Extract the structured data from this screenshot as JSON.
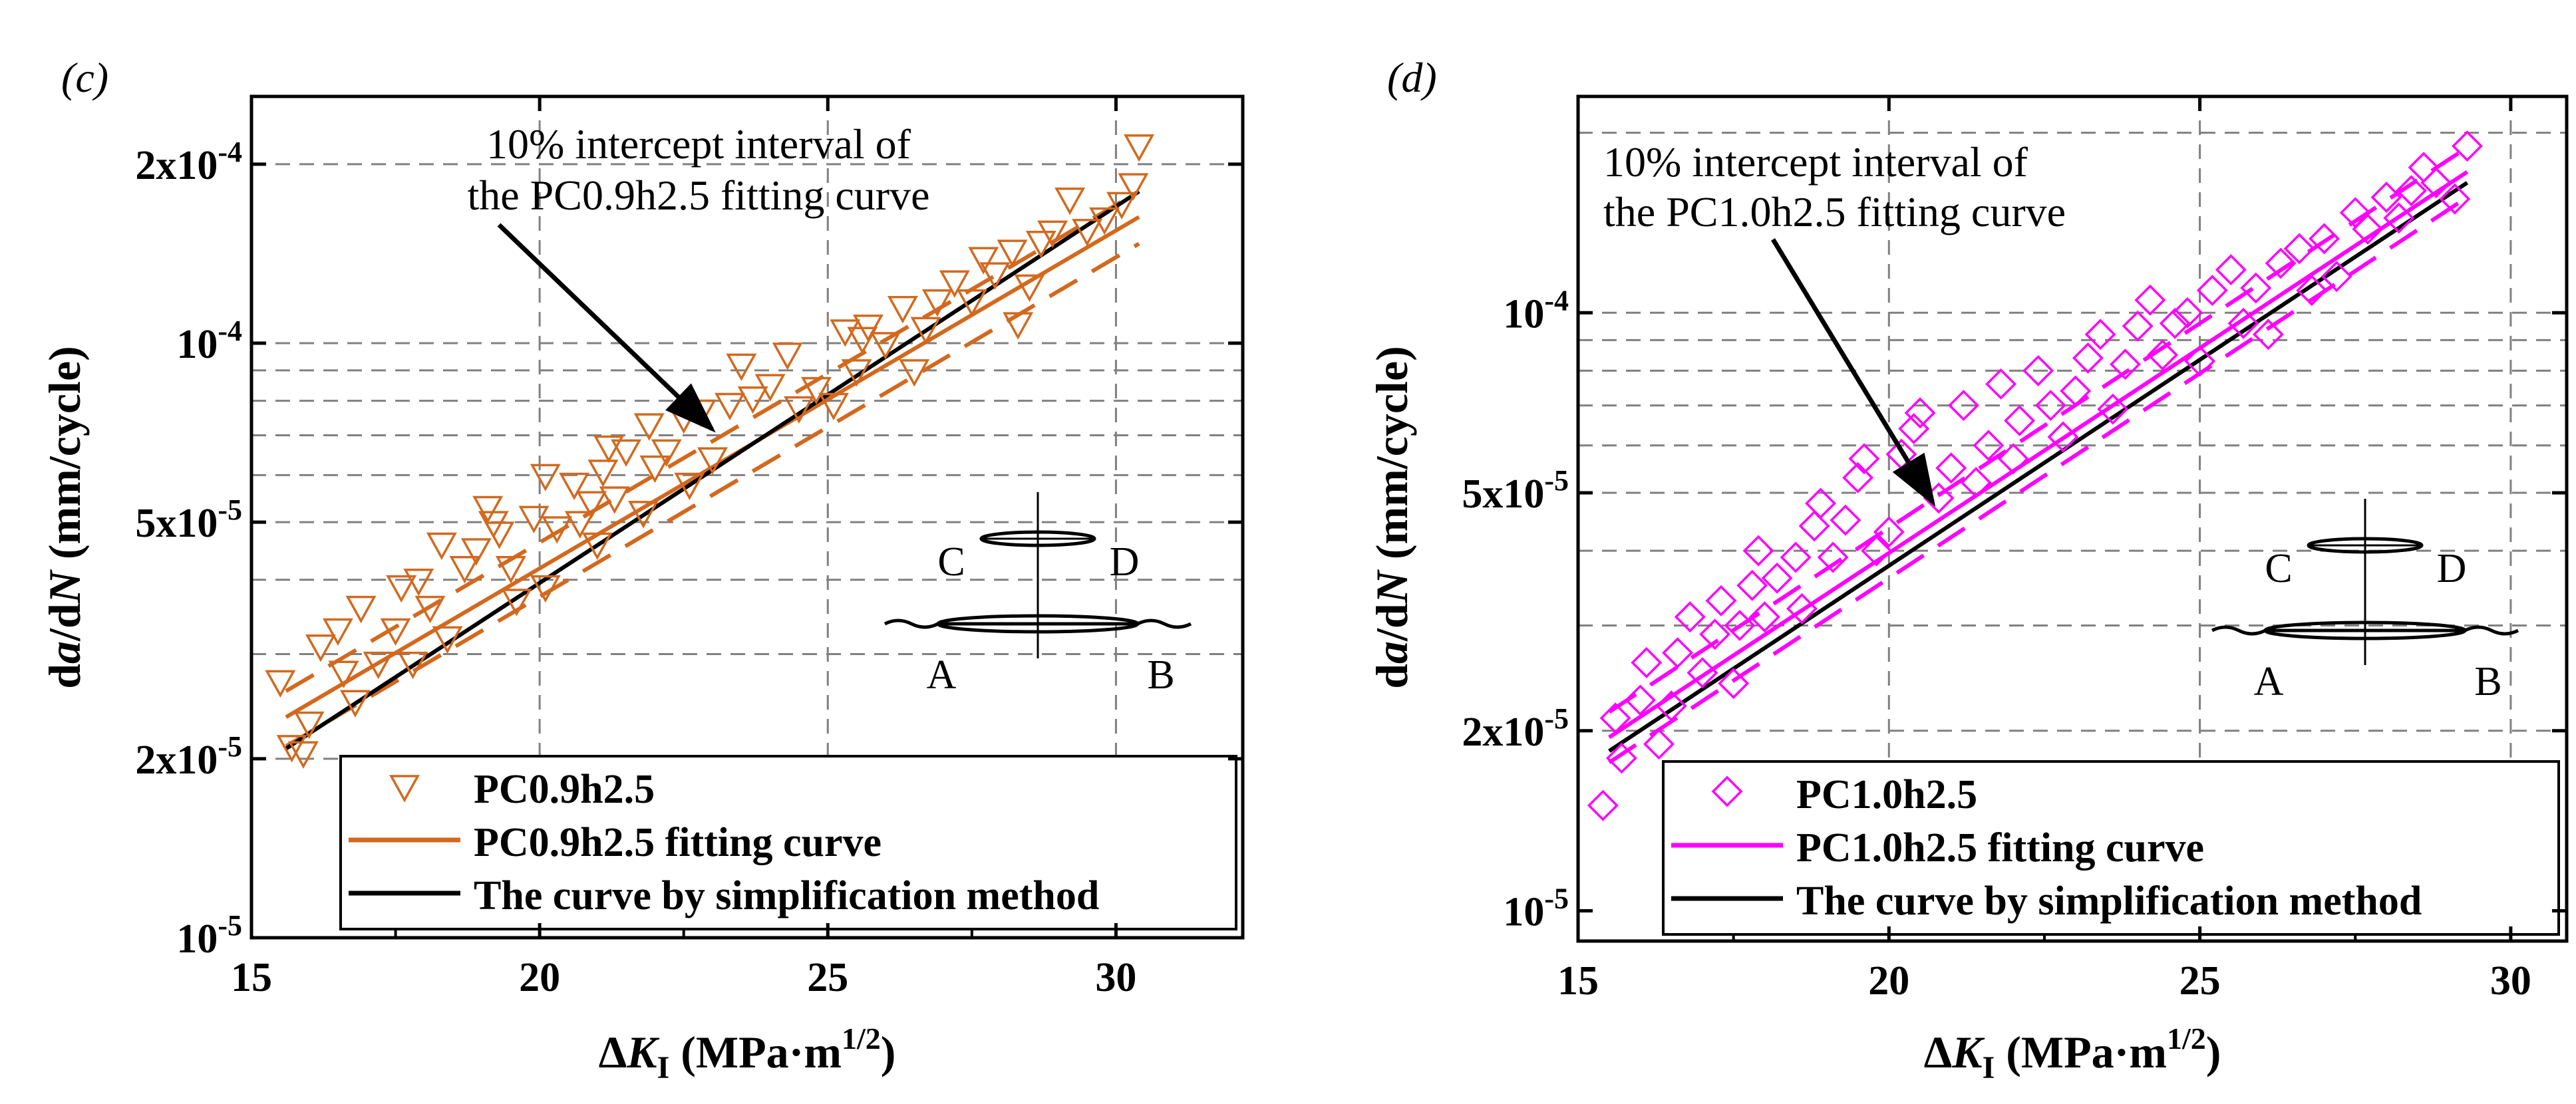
{
  "chart_data": [
    {
      "panel": "c",
      "panel_label": "(c)",
      "type": "scatter",
      "title": "",
      "xlabel": "ΔK_I (MPa·m^1/2)",
      "xlabel_parts": {
        "delta": "Δ",
        "k": "K",
        "sub": "I",
        "unit": " (MPa·m",
        "sup": "1/2",
        "close": ")"
      },
      "ylabel": "da/dN (mm/cycle)",
      "ylabel_parts": {
        "d1": "d",
        "a": "a",
        "slash": "/d",
        "n": "N",
        "unit": " (mm/cycle)"
      },
      "xscale": "linear",
      "yscale": "log",
      "xlim": [
        15,
        32.2
      ],
      "ylim": [
        1e-05,
        0.00026
      ],
      "xticks": [
        15,
        20,
        25,
        30
      ],
      "xtick_labels": [
        "15",
        "20",
        "25",
        "30"
      ],
      "yticks": [
        {
          "value": 1e-05,
          "base": "10",
          "exp": "-5"
        },
        {
          "value": 2e-05,
          "base": "2x10",
          "exp": "-5"
        },
        {
          "value": 5e-05,
          "base": "5x10",
          "exp": "-5"
        },
        {
          "value": 0.0001,
          "base": "10",
          "exp": "-4"
        },
        {
          "value": 0.0002,
          "base": "2x10",
          "exp": "-4"
        }
      ],
      "grid_x": [
        20,
        25,
        30
      ],
      "grid_y": [
        2e-05,
        3e-05,
        4e-05,
        5e-05,
        6e-05,
        7e-05,
        8e-05,
        9e-05,
        0.0001,
        0.0002
      ],
      "color": "#d2691e",
      "marker": "triangle-down",
      "points": [
        [
          15.5,
          2.7e-05
        ],
        [
          15.7,
          2.1e-05
        ],
        [
          15.9,
          2.05e-05
        ],
        [
          16.0,
          2.3e-05
        ],
        [
          16.2,
          3.1e-05
        ],
        [
          16.5,
          3.3e-05
        ],
        [
          16.6,
          2.8e-05
        ],
        [
          16.8,
          2.5e-05
        ],
        [
          16.9,
          3.6e-05
        ],
        [
          17.2,
          2.9e-05
        ],
        [
          17.5,
          3.3e-05
        ],
        [
          17.6,
          3.9e-05
        ],
        [
          17.8,
          2.9e-05
        ],
        [
          17.9,
          4e-05
        ],
        [
          18.1,
          3.6e-05
        ],
        [
          18.3,
          4.6e-05
        ],
        [
          18.4,
          3.2e-05
        ],
        [
          18.7,
          4.2e-05
        ],
        [
          18.9,
          4.5e-05
        ],
        [
          19.1,
          5.3e-05
        ],
        [
          19.2,
          5e-05
        ],
        [
          19.3,
          4.8e-05
        ],
        [
          19.5,
          4.2e-05
        ],
        [
          19.6,
          3.7e-05
        ],
        [
          19.9,
          5.1e-05
        ],
        [
          20.1,
          3.9e-05
        ],
        [
          20.1,
          6e-05
        ],
        [
          20.3,
          4.9e-05
        ],
        [
          20.6,
          5.8e-05
        ],
        [
          20.7,
          5e-05
        ],
        [
          20.9,
          5.4e-05
        ],
        [
          21.0,
          4.6e-05
        ],
        [
          21.1,
          6.1e-05
        ],
        [
          21.2,
          6.7e-05
        ],
        [
          21.3,
          5.5e-05
        ],
        [
          21.5,
          6.6e-05
        ],
        [
          21.8,
          5.2e-05
        ],
        [
          21.9,
          7.3e-05
        ],
        [
          22.0,
          6.2e-05
        ],
        [
          22.2,
          6.6e-05
        ],
        [
          22.5,
          7.5e-05
        ],
        [
          22.6,
          5.8e-05
        ],
        [
          22.8,
          7.7e-05
        ],
        [
          23.0,
          6.4e-05
        ],
        [
          23.3,
          7.9e-05
        ],
        [
          23.5,
          9.2e-05
        ],
        [
          23.7,
          8.1e-05
        ],
        [
          24.0,
          8.5e-05
        ],
        [
          24.3,
          9.6e-05
        ],
        [
          24.5,
          7.8e-05
        ],
        [
          24.8,
          8.4e-05
        ],
        [
          25.1,
          7.9e-05
        ],
        [
          25.3,
          0.000105
        ],
        [
          25.5,
          9e-05
        ],
        [
          25.6,
          0.000102
        ],
        [
          25.7,
          0.000107
        ],
        [
          26.0,
          0.0001
        ],
        [
          26.3,
          0.000115
        ],
        [
          26.5,
          9e-05
        ],
        [
          26.7,
          0.000106
        ],
        [
          26.9,
          0.000118
        ],
        [
          27.2,
          0.000127
        ],
        [
          27.5,
          0.000118
        ],
        [
          27.7,
          0.000139
        ],
        [
          27.9,
          0.000131
        ],
        [
          28.2,
          0.000143
        ],
        [
          28.3,
          0.000108
        ],
        [
          28.5,
          0.000125
        ],
        [
          28.7,
          0.000148
        ],
        [
          28.9,
          0.000154
        ],
        [
          29.2,
          0.000175
        ],
        [
          29.5,
          0.000155
        ],
        [
          29.8,
          0.000162
        ],
        [
          30.1,
          0.000172
        ],
        [
          30.3,
          0.000185
        ],
        [
          30.4,
          0.000215
        ]
      ],
      "fit_curve": {
        "x": [
          15.6,
          30.4
        ],
        "y": [
          2.35e-05,
          0.000163
        ]
      },
      "fit_upper": {
        "x": [
          15.6,
          30.4
        ],
        "y": [
          2.6e-05,
          0.00018
        ]
      },
      "fit_lower": {
        "x": [
          15.6,
          30.4
        ],
        "y": [
          2.1e-05,
          0.000147
        ]
      },
      "simplified_curve": {
        "x": [
          15.6,
          30.4
        ],
        "y": [
          2.08e-05,
          0.00018
        ]
      },
      "annotation": {
        "line1": "10% intercept interval of",
        "line2": "the PC0.9h2.5 fitting curve"
      },
      "legend": [
        {
          "kind": "marker",
          "label": "PC0.9h2.5"
        },
        {
          "kind": "fit",
          "label": "PC0.9h2.5 fitting curve"
        },
        {
          "kind": "simplified",
          "label": "The curve by simplification method"
        }
      ],
      "inset": {
        "c": "C",
        "d": "D",
        "a": "A",
        "b": "B"
      }
    },
    {
      "panel": "d",
      "panel_label": "(d)",
      "type": "scatter",
      "title": "",
      "xlabel": "ΔK_I (MPa·m^1/2)",
      "xlabel_parts": {
        "delta": "Δ",
        "k": "K",
        "sub": "I",
        "unit": " (MPa·m",
        "sup": "1/2",
        "close": ")"
      },
      "ylabel": "da/dN (mm/cycle)",
      "ylabel_parts": {
        "d1": "d",
        "a": "a",
        "slash": "/d",
        "n": "N",
        "unit": " (mm/cycle)"
      },
      "xscale": "linear",
      "yscale": "log",
      "xlim": [
        15,
        30.9
      ],
      "ylim": [
        8.9e-06,
        0.00023
      ],
      "xticks": [
        15,
        20,
        25,
        30
      ],
      "xtick_labels": [
        "15",
        "20",
        "25",
        "30"
      ],
      "yticks": [
        {
          "value": 1e-05,
          "base": "10",
          "exp": "-5"
        },
        {
          "value": 2e-05,
          "base": "2x10",
          "exp": "-5"
        },
        {
          "value": 5e-05,
          "base": "5x10",
          "exp": "-5"
        },
        {
          "value": 0.0001,
          "base": "10",
          "exp": "-4"
        }
      ],
      "grid_x": [
        20,
        25,
        30
      ],
      "grid_y": [
        2e-05,
        3e-05,
        4e-05,
        5e-05,
        6e-05,
        7e-05,
        8e-05,
        9e-05,
        0.0001,
        0.0002
      ],
      "color": "#ff00ff",
      "marker": "diamond",
      "points": [
        [
          15.4,
          1.5e-05
        ],
        [
          15.6,
          2.1e-05
        ],
        [
          15.7,
          1.8e-05
        ],
        [
          16.0,
          2.25e-05
        ],
        [
          16.1,
          2.6e-05
        ],
        [
          16.3,
          1.9e-05
        ],
        [
          16.5,
          2.2e-05
        ],
        [
          16.6,
          2.7e-05
        ],
        [
          16.8,
          3.1e-05
        ],
        [
          17.0,
          2.5e-05
        ],
        [
          17.2,
          2.9e-05
        ],
        [
          17.3,
          3.3e-05
        ],
        [
          17.5,
          2.4e-05
        ],
        [
          17.6,
          3e-05
        ],
        [
          17.8,
          3.5e-05
        ],
        [
          17.9,
          4e-05
        ],
        [
          18.0,
          3.1e-05
        ],
        [
          18.2,
          3.6e-05
        ],
        [
          18.5,
          3.9e-05
        ],
        [
          18.6,
          3.2e-05
        ],
        [
          18.8,
          4.4e-05
        ],
        [
          18.9,
          4.8e-05
        ],
        [
          19.1,
          3.9e-05
        ],
        [
          19.3,
          4.5e-05
        ],
        [
          19.5,
          5.3e-05
        ],
        [
          19.6,
          5.7e-05
        ],
        [
          19.8,
          4e-05
        ],
        [
          20.0,
          4.3e-05
        ],
        [
          20.2,
          5.8e-05
        ],
        [
          20.4,
          6.4e-05
        ],
        [
          20.5,
          6.8e-05
        ],
        [
          20.8,
          4.9e-05
        ],
        [
          21.0,
          5.5e-05
        ],
        [
          21.2,
          7e-05
        ],
        [
          21.4,
          5.2e-05
        ],
        [
          21.6,
          6e-05
        ],
        [
          21.8,
          7.6e-05
        ],
        [
          22.0,
          5.7e-05
        ],
        [
          22.1,
          6.6e-05
        ],
        [
          22.4,
          8e-05
        ],
        [
          22.6,
          7e-05
        ],
        [
          22.8,
          6.2e-05
        ],
        [
          23.0,
          7.4e-05
        ],
        [
          23.2,
          8.4e-05
        ],
        [
          23.4,
          9.2e-05
        ],
        [
          23.6,
          6.9e-05
        ],
        [
          23.8,
          8.2e-05
        ],
        [
          24.0,
          9.5e-05
        ],
        [
          24.2,
          0.000105
        ],
        [
          24.4,
          8.5e-05
        ],
        [
          24.6,
          9.6e-05
        ],
        [
          24.8,
          0.0001
        ],
        [
          25.0,
          8.3e-05
        ],
        [
          25.2,
          0.000109
        ],
        [
          25.5,
          0.000118
        ],
        [
          25.7,
          9.6e-05
        ],
        [
          25.9,
          0.00011
        ],
        [
          26.1,
          9.2e-05
        ],
        [
          26.3,
          0.000121
        ],
        [
          26.6,
          0.000128
        ],
        [
          26.8,
          0.000109
        ],
        [
          27.0,
          0.000133
        ],
        [
          27.2,
          0.000115
        ],
        [
          27.5,
          0.000147
        ],
        [
          27.7,
          0.000138
        ],
        [
          28.0,
          0.000156
        ],
        [
          28.2,
          0.000144
        ],
        [
          28.4,
          0.00016
        ],
        [
          28.6,
          0.000175
        ],
        [
          28.8,
          0.000165
        ],
        [
          29.1,
          0.000155
        ],
        [
          29.3,
          0.00019
        ]
      ],
      "fit_curve": {
        "x": [
          15.5,
          29.3
        ],
        "y": [
          1.95e-05,
          0.000172
        ]
      },
      "fit_upper": {
        "x": [
          15.5,
          29.3
        ],
        "y": [
          2.15e-05,
          0.000189
        ]
      },
      "fit_lower": {
        "x": [
          15.5,
          29.3
        ],
        "y": [
          1.77e-05,
          0.000156
        ]
      },
      "simplified_curve": {
        "x": [
          15.5,
          29.3
        ],
        "y": [
          1.85e-05,
          0.000165
        ]
      },
      "annotation": {
        "line1": "10% intercept interval of",
        "line2": "the PC1.0h2.5 fitting curve"
      },
      "legend": [
        {
          "kind": "marker",
          "label": "PC1.0h2.5"
        },
        {
          "kind": "fit",
          "label": "PC1.0h2.5 fitting curve"
        },
        {
          "kind": "simplified",
          "label": "The curve by simplification method"
        }
      ],
      "inset": {
        "c": "C",
        "d": "D",
        "a": "A",
        "b": "B"
      }
    }
  ]
}
